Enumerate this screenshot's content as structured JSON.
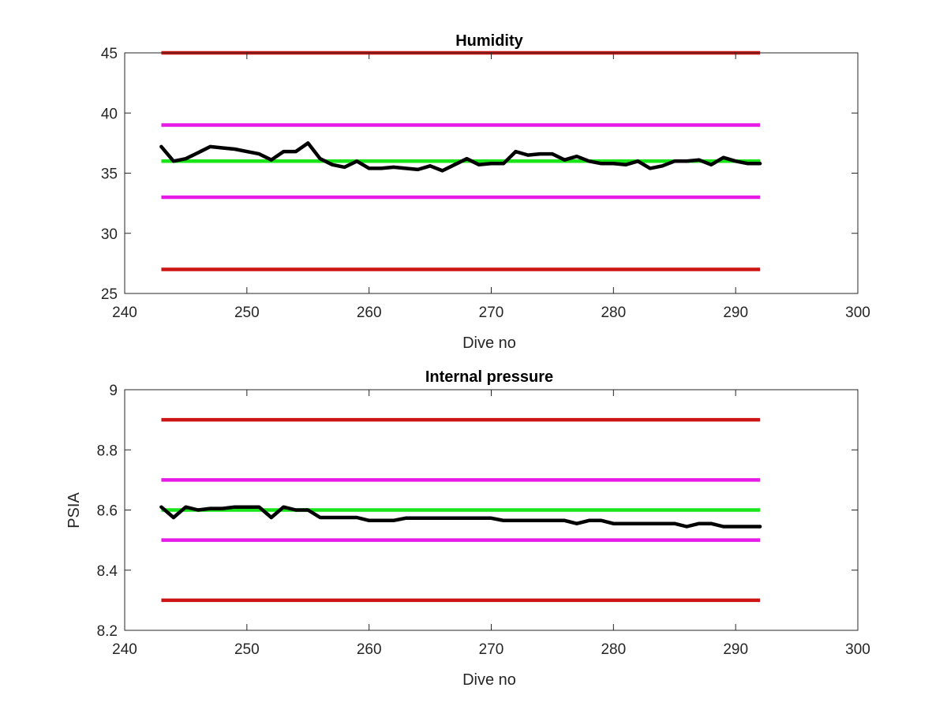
{
  "chart_data": [
    {
      "type": "line",
      "title": "Humidity",
      "xlabel": "Dive no",
      "ylabel": "",
      "xlim": [
        240,
        300
      ],
      "ylim": [
        25,
        45
      ],
      "xticks": [
        240,
        250,
        260,
        270,
        280,
        290,
        300
      ],
      "yticks": [
        25,
        30,
        35,
        40,
        45
      ],
      "xtick_labels": [
        "240",
        "250",
        "260",
        "270",
        "280",
        "290",
        "300"
      ],
      "ytick_labels": [
        "25",
        "30",
        "35",
        "40",
        "45"
      ],
      "grid": false,
      "legend": "none",
      "reference_lines": [
        {
          "y": 45,
          "x": [
            243,
            292
          ],
          "color": "#cc1414"
        },
        {
          "y": 39,
          "x": [
            243,
            292
          ],
          "color": "#e619e6"
        },
        {
          "y": 36,
          "x": [
            243,
            292
          ],
          "color": "#19e619"
        },
        {
          "y": 33,
          "x": [
            243,
            292
          ],
          "color": "#e619e6"
        },
        {
          "y": 27,
          "x": [
            243,
            292
          ],
          "color": "#cc1414"
        }
      ],
      "series": [
        {
          "color": "#000000",
          "x": [
            243,
            244,
            245,
            246,
            247,
            248,
            249,
            250,
            251,
            252,
            253,
            254,
            255,
            256,
            257,
            258,
            259,
            260,
            261,
            262,
            263,
            264,
            265,
            266,
            267,
            268,
            269,
            270,
            271,
            272,
            273,
            274,
            275,
            276,
            277,
            278,
            279,
            280,
            281,
            282,
            283,
            284,
            285,
            286,
            287,
            288,
            289,
            290,
            291,
            292
          ],
          "values": [
            37.2,
            36.0,
            36.2,
            36.7,
            37.2,
            37.1,
            37.0,
            36.8,
            36.6,
            36.1,
            36.8,
            36.8,
            37.5,
            36.2,
            35.7,
            35.5,
            36.0,
            35.4,
            35.4,
            35.5,
            35.4,
            35.3,
            35.6,
            35.2,
            35.7,
            36.2,
            35.7,
            35.8,
            35.8,
            36.8,
            36.5,
            36.6,
            36.6,
            36.1,
            36.4,
            36.0,
            35.8,
            35.8,
            35.7,
            36.0,
            35.4,
            35.6,
            36.0,
            36.0,
            36.1,
            35.7,
            36.3,
            36.0,
            35.8,
            35.8
          ]
        }
      ]
    },
    {
      "type": "line",
      "title": "Internal pressure",
      "xlabel": "Dive no",
      "ylabel": "PSIA",
      "xlim": [
        240,
        300
      ],
      "ylim": [
        8.2,
        9.0
      ],
      "xticks": [
        240,
        250,
        260,
        270,
        280,
        290,
        300
      ],
      "yticks": [
        8.2,
        8.4,
        8.6,
        8.8,
        9.0
      ],
      "xtick_labels": [
        "240",
        "250",
        "260",
        "270",
        "280",
        "290",
        "300"
      ],
      "ytick_labels": [
        "8.2",
        "8.4",
        "8.6",
        "8.8",
        "9"
      ],
      "grid": false,
      "legend": "none",
      "reference_lines": [
        {
          "y": 8.9,
          "x": [
            243,
            292
          ],
          "color": "#cc1414"
        },
        {
          "y": 8.7,
          "x": [
            243,
            292
          ],
          "color": "#e619e6"
        },
        {
          "y": 8.6,
          "x": [
            243,
            292
          ],
          "color": "#19e619"
        },
        {
          "y": 8.5,
          "x": [
            243,
            292
          ],
          "color": "#e619e6"
        },
        {
          "y": 8.3,
          "x": [
            243,
            292
          ],
          "color": "#cc1414"
        }
      ],
      "series": [
        {
          "color": "#000000",
          "x": [
            243,
            244,
            245,
            246,
            247,
            248,
            249,
            250,
            251,
            252,
            253,
            254,
            255,
            256,
            257,
            258,
            259,
            260,
            261,
            262,
            263,
            264,
            265,
            266,
            267,
            268,
            269,
            270,
            271,
            272,
            273,
            274,
            275,
            276,
            277,
            278,
            279,
            280,
            281,
            282,
            283,
            284,
            285,
            286,
            287,
            288,
            289,
            290,
            291,
            292
          ],
          "values": [
            8.61,
            8.575,
            8.61,
            8.6,
            8.605,
            8.605,
            8.61,
            8.61,
            8.61,
            8.575,
            8.61,
            8.6,
            8.6,
            8.575,
            8.575,
            8.575,
            8.575,
            8.565,
            8.565,
            8.565,
            8.573,
            8.573,
            8.573,
            8.573,
            8.573,
            8.573,
            8.573,
            8.573,
            8.565,
            8.565,
            8.565,
            8.565,
            8.565,
            8.565,
            8.555,
            8.565,
            8.565,
            8.555,
            8.555,
            8.555,
            8.555,
            8.555,
            8.555,
            8.545,
            8.555,
            8.555,
            8.545,
            8.545,
            8.545,
            8.545
          ]
        }
      ]
    }
  ]
}
